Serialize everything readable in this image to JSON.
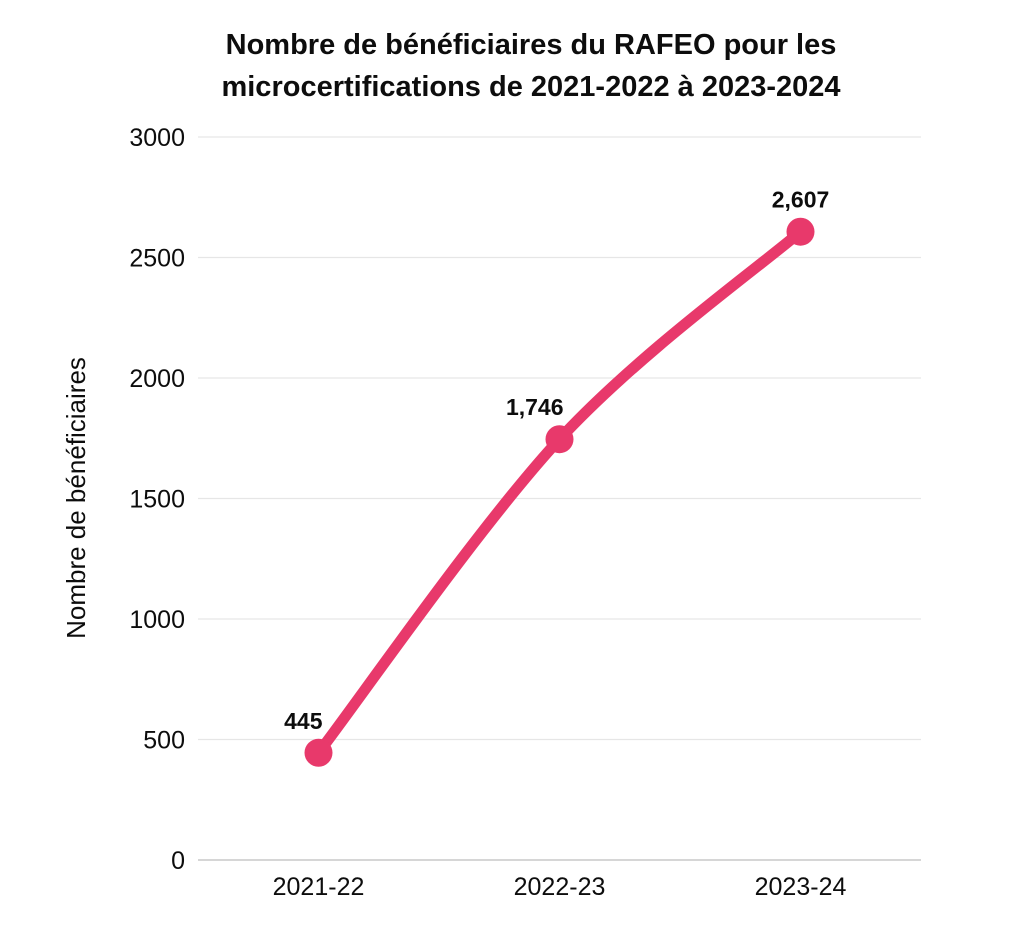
{
  "chart_data": {
    "type": "line",
    "title": "Nombre de bénéficiaires du RAFEO pour les microcertifications de 2021-2022 à 2023-2024",
    "title_lines": [
      "Nombre de bénéficiaires du RAFEO pour les",
      "microcertifications de 2021-2022 à 2023-2024"
    ],
    "categories": [
      "2021-22",
      "2022-23",
      "2023-24"
    ],
    "series": [
      {
        "name": "Nombre de bénéficiaires",
        "values": [
          445,
          1746,
          2607
        ],
        "labels": [
          "445",
          "1,746",
          "2,607"
        ]
      }
    ],
    "xlabel": "",
    "ylabel": "Nombre de bénéficiaires",
    "ylim": [
      0,
      3000
    ],
    "yticks": [
      0,
      500,
      1000,
      1500,
      2000,
      2500,
      3000
    ],
    "grid": "horizontal",
    "legend": "none",
    "label_anchors": [
      "end",
      "end",
      "middle"
    ],
    "colors": {
      "line": "#E8396B",
      "grid": "#E6E6E6",
      "axis": "#C9C9C9",
      "text": "#0d0d0d"
    }
  }
}
